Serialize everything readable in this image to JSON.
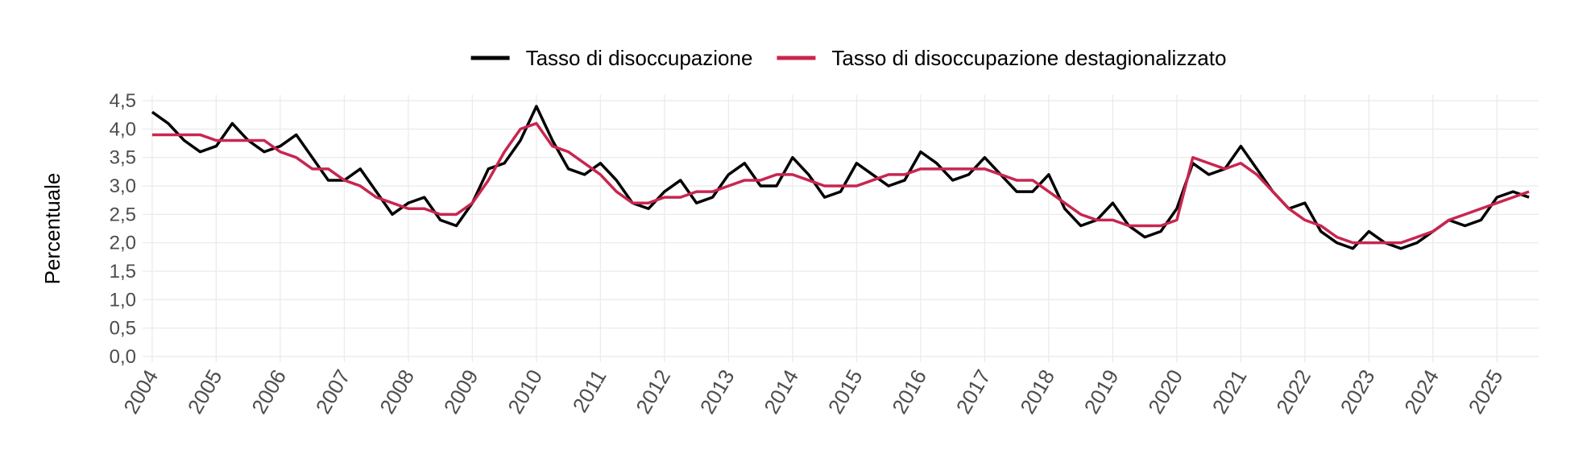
{
  "chart_data": {
    "type": "line",
    "y_label": "Percentuale",
    "x": [
      2004,
      2004.25,
      2004.5,
      2004.75,
      2005,
      2005.25,
      2005.5,
      2005.75,
      2006,
      2006.25,
      2006.5,
      2006.75,
      2007,
      2007.25,
      2007.5,
      2007.75,
      2008,
      2008.25,
      2008.5,
      2008.75,
      2009,
      2009.25,
      2009.5,
      2009.75,
      2010,
      2010.25,
      2010.5,
      2010.75,
      2011,
      2011.25,
      2011.5,
      2011.75,
      2012,
      2012.25,
      2012.5,
      2012.75,
      2013,
      2013.25,
      2013.5,
      2013.75,
      2014,
      2014.25,
      2014.5,
      2014.75,
      2015,
      2015.25,
      2015.5,
      2015.75,
      2016,
      2016.25,
      2016.5,
      2016.75,
      2017,
      2017.25,
      2017.5,
      2017.75,
      2018,
      2018.25,
      2018.5,
      2018.75,
      2019,
      2019.25,
      2019.5,
      2019.75,
      2020,
      2020.25,
      2020.5,
      2020.75,
      2021,
      2021.25,
      2021.5,
      2021.75,
      2022,
      2022.25,
      2022.5,
      2022.75,
      2023,
      2023.25,
      2023.5,
      2023.75,
      2024,
      2024.25,
      2024.5,
      2024.75,
      2025,
      2025.25,
      2025.5
    ],
    "series": [
      {
        "name": "Tasso di disoccupazione",
        "color": "#000000",
        "values": [
          4.3,
          4.1,
          3.8,
          3.6,
          3.7,
          4.1,
          3.8,
          3.6,
          3.7,
          3.9,
          3.5,
          3.1,
          3.1,
          3.3,
          2.9,
          2.5,
          2.7,
          2.8,
          2.4,
          2.3,
          2.7,
          3.3,
          3.4,
          3.8,
          4.4,
          3.8,
          3.3,
          3.2,
          3.4,
          3.1,
          2.7,
          2.6,
          2.9,
          3.1,
          2.7,
          2.8,
          3.2,
          3.4,
          3.0,
          3.0,
          3.5,
          3.2,
          2.8,
          2.9,
          3.4,
          3.2,
          3.0,
          3.1,
          3.6,
          3.4,
          3.1,
          3.2,
          3.5,
          3.2,
          2.9,
          2.9,
          3.2,
          2.6,
          2.3,
          2.4,
          2.7,
          2.3,
          2.1,
          2.2,
          2.6,
          3.4,
          3.2,
          3.3,
          3.7,
          3.3,
          2.9,
          2.6,
          2.7,
          2.2,
          2.0,
          1.9,
          2.2,
          2.0,
          1.9,
          2.0,
          2.2,
          2.4,
          2.3,
          2.4,
          2.8,
          2.9,
          2.8
        ]
      },
      {
        "name": "Tasso di disoccupazione destagionalizzato",
        "color": "#c8264f",
        "values": [
          3.9,
          3.9,
          3.9,
          3.9,
          3.8,
          3.8,
          3.8,
          3.8,
          3.6,
          3.5,
          3.3,
          3.3,
          3.1,
          3.0,
          2.8,
          2.7,
          2.6,
          2.6,
          2.5,
          2.5,
          2.7,
          3.1,
          3.6,
          4.0,
          4.1,
          3.7,
          3.6,
          3.4,
          3.2,
          2.9,
          2.7,
          2.7,
          2.8,
          2.8,
          2.9,
          2.9,
          3.0,
          3.1,
          3.1,
          3.2,
          3.2,
          3.1,
          3.0,
          3.0,
          3.0,
          3.1,
          3.2,
          3.2,
          3.3,
          3.3,
          3.3,
          3.3,
          3.3,
          3.2,
          3.1,
          3.1,
          2.9,
          2.7,
          2.5,
          2.4,
          2.4,
          2.3,
          2.3,
          2.3,
          2.4,
          3.5,
          3.4,
          3.3,
          3.4,
          3.2,
          2.9,
          2.6,
          2.4,
          2.3,
          2.1,
          2.0,
          2.0,
          2.0,
          2.0,
          2.1,
          2.2,
          2.4,
          2.5,
          2.6,
          2.7,
          2.8,
          2.9
        ]
      }
    ],
    "xlim": [
      2003.85,
      2025.65
    ],
    "xticks": [
      2004,
      2005,
      2006,
      2007,
      2008,
      2009,
      2010,
      2011,
      2012,
      2013,
      2014,
      2015,
      2016,
      2017,
      2018,
      2019,
      2020,
      2021,
      2022,
      2023,
      2024,
      2025
    ],
    "ylim": [
      -0.1,
      4.6
    ],
    "yticks": [
      {
        "value": 0,
        "label": "0,0"
      },
      {
        "value": 0.5,
        "label": "0,5"
      },
      {
        "value": 1,
        "label": "1,0"
      },
      {
        "value": 1.5,
        "label": "1,5"
      },
      {
        "value": 2,
        "label": "2,0"
      },
      {
        "value": 2.5,
        "label": "2,5"
      },
      {
        "value": 3,
        "label": "3,0"
      },
      {
        "value": 3.5,
        "label": "3,5"
      },
      {
        "value": 4,
        "label": "4,0"
      },
      {
        "value": 4.5,
        "label": "4,5"
      }
    ],
    "grid": true,
    "legend": "top"
  }
}
